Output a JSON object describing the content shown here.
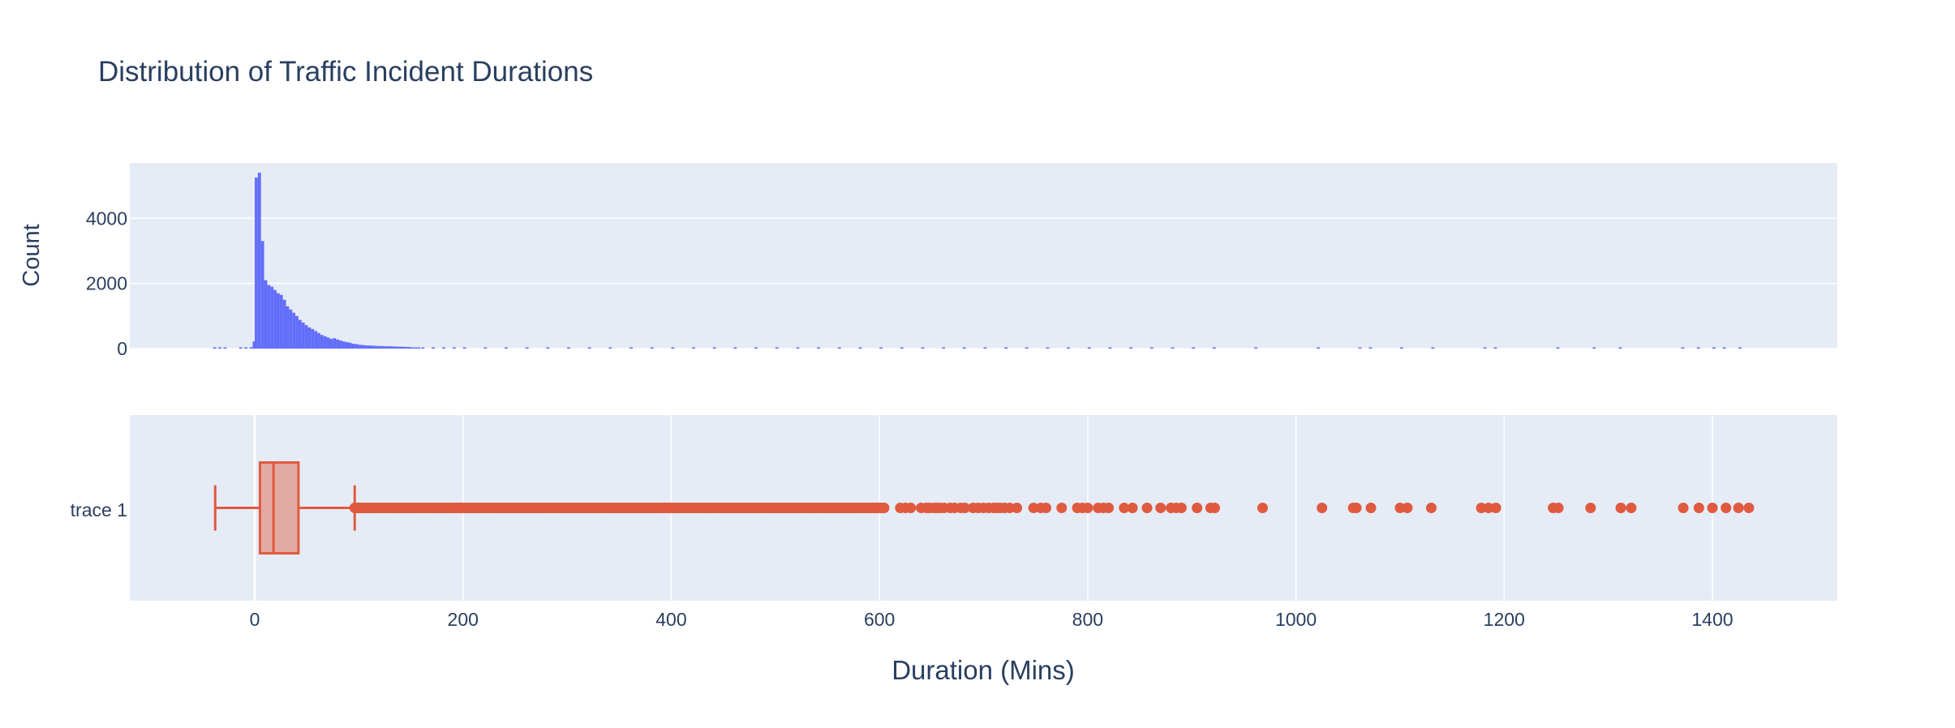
{
  "chart_data": {
    "title": "Distribution of Traffic Incident Durations",
    "xlabel": "Duration (Mins)",
    "colors": {
      "histogram": "#636efa",
      "box": "#e05a40",
      "plot_bg": "#e5ecf6",
      "grid": "#ffffff",
      "text": "#2a3f5f"
    },
    "x_axis": {
      "range": [
        -120,
        1520
      ],
      "tick_values": [
        0,
        200,
        400,
        600,
        800,
        1000,
        1200,
        1400
      ],
      "tick_labels": [
        "0",
        "200",
        "400",
        "600",
        "800",
        "1000",
        "1200",
        "1400"
      ]
    },
    "histogram": {
      "type": "bar",
      "ylabel": "Count",
      "ylim": [
        0,
        5700
      ],
      "y_tick_values": [
        0,
        2000,
        4000
      ],
      "y_tick_labels": [
        "0",
        "2000",
        "4000"
      ],
      "bin_width": 3,
      "bins": [
        [
          -40,
          8
        ],
        [
          -35,
          10
        ],
        [
          -30,
          6
        ],
        [
          -15,
          12
        ],
        [
          -10,
          15
        ],
        [
          -5,
          30
        ],
        [
          -2,
          220
        ],
        [
          0,
          5250
        ],
        [
          3,
          5400
        ],
        [
          6,
          3300
        ],
        [
          9,
          2100
        ],
        [
          12,
          1950
        ],
        [
          15,
          1900
        ],
        [
          18,
          1800
        ],
        [
          21,
          1700
        ],
        [
          24,
          1650
        ],
        [
          27,
          1500
        ],
        [
          30,
          1300
        ],
        [
          33,
          1200
        ],
        [
          36,
          1100
        ],
        [
          39,
          1000
        ],
        [
          42,
          880
        ],
        [
          45,
          800
        ],
        [
          48,
          720
        ],
        [
          51,
          650
        ],
        [
          54,
          600
        ],
        [
          57,
          540
        ],
        [
          60,
          480
        ],
        [
          63,
          420
        ],
        [
          66,
          380
        ],
        [
          69,
          340
        ],
        [
          72,
          300
        ],
        [
          75,
          320
        ],
        [
          78,
          280
        ],
        [
          81,
          250
        ],
        [
          84,
          220
        ],
        [
          87,
          200
        ],
        [
          90,
          180
        ],
        [
          93,
          150
        ],
        [
          96,
          140
        ],
        [
          99,
          120
        ],
        [
          102,
          110
        ],
        [
          105,
          100
        ],
        [
          108,
          95
        ],
        [
          111,
          90
        ],
        [
          114,
          85
        ],
        [
          117,
          80
        ],
        [
          120,
          78
        ],
        [
          123,
          75
        ],
        [
          126,
          72
        ],
        [
          129,
          70
        ],
        [
          132,
          65
        ],
        [
          135,
          62
        ],
        [
          138,
          60
        ],
        [
          141,
          55
        ],
        [
          144,
          52
        ],
        [
          147,
          50
        ],
        [
          150,
          35
        ],
        [
          153,
          30
        ],
        [
          156,
          28
        ],
        [
          160,
          25
        ],
        [
          170,
          22
        ],
        [
          180,
          20
        ],
        [
          190,
          18
        ],
        [
          200,
          18
        ],
        [
          220,
          15
        ],
        [
          240,
          15
        ],
        [
          260,
          12
        ],
        [
          280,
          12
        ],
        [
          300,
          12
        ],
        [
          320,
          10
        ],
        [
          340,
          10
        ],
        [
          360,
          10
        ],
        [
          380,
          10
        ],
        [
          400,
          9
        ],
        [
          420,
          9
        ],
        [
          440,
          8
        ],
        [
          460,
          8
        ],
        [
          480,
          8
        ],
        [
          500,
          8
        ],
        [
          520,
          8
        ],
        [
          540,
          7
        ],
        [
          560,
          7
        ],
        [
          580,
          7
        ],
        [
          600,
          6
        ],
        [
          620,
          5
        ],
        [
          640,
          5
        ],
        [
          660,
          5
        ],
        [
          680,
          5
        ],
        [
          700,
          5
        ],
        [
          720,
          5
        ],
        [
          740,
          4
        ],
        [
          760,
          4
        ],
        [
          780,
          4
        ],
        [
          800,
          4
        ],
        [
          820,
          4
        ],
        [
          840,
          4
        ],
        [
          860,
          4
        ],
        [
          880,
          4
        ],
        [
          900,
          3
        ],
        [
          920,
          3
        ],
        [
          960,
          3
        ],
        [
          1020,
          3
        ],
        [
          1060,
          3
        ],
        [
          1070,
          3
        ],
        [
          1100,
          3
        ],
        [
          1130,
          3
        ],
        [
          1180,
          3
        ],
        [
          1190,
          3
        ],
        [
          1250,
          3
        ],
        [
          1285,
          3
        ],
        [
          1310,
          3
        ],
        [
          1370,
          3
        ],
        [
          1385,
          3
        ],
        [
          1400,
          3
        ],
        [
          1410,
          3
        ],
        [
          1425,
          3
        ]
      ]
    },
    "box": {
      "type": "box",
      "name": "trace 1",
      "lower_fence": -38,
      "q1": 5,
      "median": 18,
      "q3": 42,
      "upper_fence": 96,
      "outliers": [
        620,
        625,
        630,
        640,
        645,
        648,
        652,
        655,
        658,
        662,
        668,
        672,
        678,
        682,
        690,
        695,
        700,
        705,
        710,
        713,
        716,
        720,
        725,
        732,
        748,
        755,
        760,
        775,
        790,
        795,
        800,
        810,
        815,
        820,
        835,
        843,
        857,
        870,
        880,
        885,
        890,
        905,
        918,
        922,
        968,
        1025,
        1055,
        1058,
        1072,
        1100,
        1107,
        1130,
        1178,
        1185,
        1192,
        1247,
        1252,
        1283,
        1312,
        1322,
        1372,
        1387,
        1400,
        1413,
        1425,
        1435
      ],
      "dense_outlier_range": [
        96,
        605
      ]
    }
  }
}
